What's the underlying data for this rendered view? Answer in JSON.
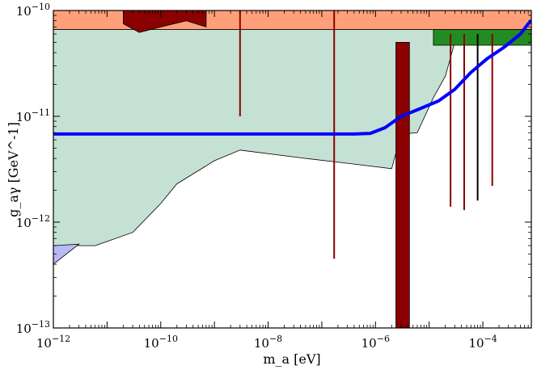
{
  "chart_data": {
    "type": "area",
    "title": "",
    "xlabel": "m_a [eV]",
    "ylabel": "g_aγ [GeV^-1]",
    "x_scale": "log",
    "y_scale": "log",
    "xlim": [
      1e-12,
      0.0008
    ],
    "ylim": [
      1e-13,
      1e-10
    ],
    "x_ticks": [
      {
        "value": 1e-12,
        "base": "10",
        "exp": "−12"
      },
      {
        "value": 1e-10,
        "base": "10",
        "exp": "−10"
      },
      {
        "value": 1e-08,
        "base": "10",
        "exp": "−8"
      },
      {
        "value": 1e-06,
        "base": "10",
        "exp": "−6"
      },
      {
        "value": 0.0001,
        "base": "10",
        "exp": "−4"
      }
    ],
    "y_ticks": [
      {
        "value": 1e-13,
        "base": "10",
        "exp": "−13"
      },
      {
        "value": 1e-12,
        "base": "10",
        "exp": "−12"
      },
      {
        "value": 1e-11,
        "base": "10",
        "exp": "−11"
      },
      {
        "value": 1e-10,
        "base": "10",
        "exp": "−10"
      }
    ],
    "grid": false,
    "colors": {
      "excluded_band": "#ffa07a",
      "main_region": "#c5e1d3",
      "haloscope": "#8b0000",
      "green_band": "#228b22",
      "blue_region": "#b9b9f5",
      "projection_curve": "#0000ff"
    },
    "regions": [
      {
        "key": "top_band",
        "color": "excluded_band",
        "points": [
          [
            1e-12,
            1e-10
          ],
          [
            0.0008,
            1e-10
          ],
          [
            0.0008,
            6.6e-11
          ],
          [
            1e-12,
            6.6e-11
          ]
        ]
      },
      {
        "key": "main_region",
        "color": "main_region",
        "points": [
          [
            1e-12,
            6.6e-11
          ],
          [
            0.0008,
            6.6e-11
          ],
          [
            0.0008,
            5e-11
          ],
          [
            3e-05,
            5e-11
          ],
          [
            2e-05,
            2.4e-11
          ],
          [
            1.2e-05,
            1.5e-11
          ],
          [
            6e-06,
            7e-12
          ],
          [
            3e-06,
            6.8e-12
          ],
          [
            2e-06,
            3.2e-12
          ],
          [
            3e-07,
            3.6e-12
          ],
          [
            5e-08,
            4e-12
          ],
          [
            3e-09,
            4.8e-12
          ],
          [
            1e-09,
            3.8e-12
          ],
          [
            2e-10,
            2.3e-12
          ],
          [
            1e-10,
            1.5e-12
          ],
          [
            3e-11,
            8e-13
          ],
          [
            6e-12,
            6e-13
          ],
          [
            1e-12,
            6e-13
          ]
        ]
      },
      {
        "key": "blue_region",
        "color": "blue_region",
        "points": [
          [
            1e-12,
            6e-13
          ],
          [
            3e-12,
            6.2e-13
          ],
          [
            1e-12,
            4e-13
          ]
        ]
      },
      {
        "key": "green_band",
        "color": "green_band",
        "points": [
          [
            1.2e-05,
            6.6e-11
          ],
          [
            0.0008,
            6.6e-11
          ],
          [
            0.0008,
            4.7e-11
          ],
          [
            1.2e-05,
            4.7e-11
          ]
        ]
      },
      {
        "key": "haloscope_block",
        "color": "haloscope",
        "points": [
          [
            2.4e-06,
            5e-11
          ],
          [
            4.3e-06,
            5e-11
          ],
          [
            4.3e-06,
            1e-13
          ],
          [
            2.4e-06,
            1e-13
          ]
        ]
      },
      {
        "key": "haloscope_top",
        "color": "haloscope",
        "points": [
          [
            2e-11,
            1e-10
          ],
          [
            7e-10,
            1e-10
          ],
          [
            7e-10,
            7e-11
          ],
          [
            3e-10,
            8e-11
          ],
          [
            1e-10,
            7e-11
          ],
          [
            4e-11,
            6.2e-11
          ],
          [
            2e-11,
            7.5e-11
          ]
        ]
      }
    ],
    "lines": [
      {
        "key": "haloscope_line_1",
        "color": "haloscope",
        "points": [
          [
            3e-09,
            1e-10
          ],
          [
            3e-09,
            1e-11
          ]
        ]
      },
      {
        "key": "haloscope_line_2",
        "color": "haloscope",
        "points": [
          [
            1.7e-07,
            1e-10
          ],
          [
            1.7e-07,
            4.5e-13
          ]
        ]
      },
      {
        "key": "haloscope_line_3",
        "color": "haloscope",
        "points": [
          [
            2.5e-05,
            6e-11
          ],
          [
            2.5e-05,
            1.4e-12
          ]
        ]
      },
      {
        "key": "haloscope_line_4",
        "color": "haloscope",
        "points": [
          [
            4.5e-05,
            6e-11
          ],
          [
            4.5e-05,
            1.3e-12
          ]
        ]
      },
      {
        "key": "haloscope_line_5",
        "color": "haloscope",
        "points": [
          [
            0.00015,
            6e-11
          ],
          [
            0.00015,
            2.2e-12
          ]
        ]
      },
      {
        "key": "black_line_1",
        "color": "#000000",
        "points": [
          [
            8e-05,
            6e-11
          ],
          [
            8e-05,
            1.6e-12
          ]
        ]
      }
    ],
    "series": [
      {
        "color": "projection_curve",
        "x": [
          1e-12,
          1e-10,
          1e-08,
          1e-07,
          4e-07,
          8e-07,
          1.5e-06,
          3e-06,
          6e-06,
          1.5e-05,
          3e-05,
          6e-05,
          0.00012,
          0.00025,
          0.0005,
          0.0007,
          0.0008
        ],
        "y": [
          6.8e-12,
          6.8e-12,
          6.8e-12,
          6.8e-12,
          6.8e-12,
          6.9e-12,
          7.8e-12,
          1e-11,
          1.15e-11,
          1.4e-11,
          1.8e-11,
          2.6e-11,
          3.5e-11,
          4.5e-11,
          6e-11,
          7.5e-11,
          8e-11
        ]
      }
    ]
  }
}
